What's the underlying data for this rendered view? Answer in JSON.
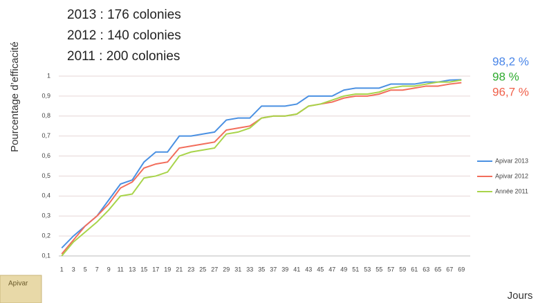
{
  "chart_data": {
    "type": "line",
    "headline": [
      "2013 : 176 colonies",
      "2012 : 140 colonies",
      "2011 : 200 colonies"
    ],
    "y_label": "Pourcentage d’efficacité",
    "x_label": "Jours",
    "end_labels": [
      {
        "text": "98,2 %",
        "color": "#4a86e8"
      },
      {
        "text": "98 %",
        "color": "#2eaa2e"
      },
      {
        "text": "96,7 %",
        "color": "#f0604a"
      }
    ],
    "image_text": "Apivar",
    "x": [
      1,
      3,
      5,
      7,
      9,
      11,
      13,
      15,
      17,
      19,
      21,
      23,
      25,
      27,
      29,
      31,
      33,
      35,
      37,
      39,
      41,
      43,
      45,
      47,
      49,
      51,
      53,
      55,
      57,
      59,
      61,
      63,
      65,
      67,
      69
    ],
    "xlim": [
      0.5,
      70.5
    ],
    "ylim": [
      0.1,
      1
    ],
    "yticks": [
      {
        "value": 0.1,
        "label": "0,1"
      },
      {
        "value": 0.2,
        "label": "0,2"
      },
      {
        "value": 0.3,
        "label": "0,3"
      },
      {
        "value": 0.4,
        "label": "0,4"
      },
      {
        "value": 0.5,
        "label": "0,5"
      },
      {
        "value": 0.6,
        "label": "0,6"
      },
      {
        "value": 0.7,
        "label": "0,7"
      },
      {
        "value": 0.8,
        "label": "0,8"
      },
      {
        "value": 0.9,
        "label": "0,9"
      },
      1
    ],
    "grid": true,
    "legend": "right",
    "series": [
      {
        "name": "Apivar 2013",
        "color": "#4a90e2",
        "values": [
          0.14,
          0.2,
          0.25,
          0.3,
          0.38,
          0.46,
          0.48,
          0.57,
          0.62,
          0.62,
          0.7,
          0.7,
          0.71,
          0.72,
          0.78,
          0.79,
          0.79,
          0.85,
          0.85,
          0.85,
          0.86,
          0.9,
          0.9,
          0.9,
          0.93,
          0.94,
          0.94,
          0.94,
          0.96,
          0.96,
          0.96,
          0.97,
          0.97,
          0.98,
          0.982
        ]
      },
      {
        "name": "Apivar 2012",
        "color": "#f26d5b",
        "values": [
          0.11,
          0.18,
          0.25,
          0.3,
          0.36,
          0.44,
          0.47,
          0.54,
          0.56,
          0.57,
          0.64,
          0.65,
          0.66,
          0.67,
          0.73,
          0.74,
          0.75,
          0.79,
          0.8,
          0.8,
          0.81,
          0.85,
          0.86,
          0.87,
          0.89,
          0.9,
          0.9,
          0.91,
          0.93,
          0.93,
          0.94,
          0.95,
          0.95,
          0.96,
          0.967
        ]
      },
      {
        "name": "Année 2011",
        "color": "#a8d44a",
        "values": [
          0.1,
          0.17,
          0.22,
          0.27,
          0.33,
          0.4,
          0.41,
          0.49,
          0.5,
          0.52,
          0.6,
          0.62,
          0.63,
          0.64,
          0.71,
          0.72,
          0.74,
          0.79,
          0.8,
          0.8,
          0.81,
          0.85,
          0.86,
          0.88,
          0.9,
          0.91,
          0.91,
          0.92,
          0.94,
          0.95,
          0.95,
          0.96,
          0.97,
          0.97,
          0.98
        ]
      }
    ]
  }
}
